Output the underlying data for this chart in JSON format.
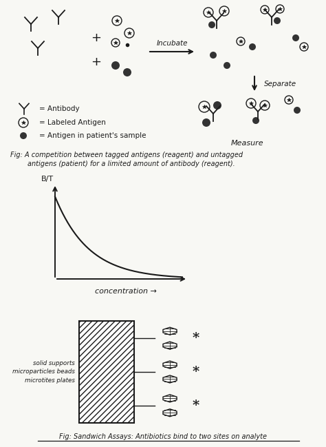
{
  "background_color": "#f8f8f4",
  "fig_caption1": "Fig: A competition between tagged antigens (reagent) and untagged",
  "fig_caption1b": "        antigens (patient) for a limited amount of antibody (reagent).",
  "fig_caption2": "Fig: Sandwich Assays: Antibiotics bind to two sites on analyte",
  "incubate_label": "Incubate",
  "separate_label": "Separate",
  "measure_label": "Measure",
  "concentration_label": "concentration →",
  "bit_label": "B/T",
  "legend_antibody": "= Antibody",
  "legend_labeled": "= Labeled Antigen",
  "legend_patient": "= Antigen in patient's sample",
  "solid_support_label": "solid supports\nmicroparticles beads\nmicrotites plates",
  "line_color": "#1a1a1a",
  "text_color": "#1a1a1a"
}
